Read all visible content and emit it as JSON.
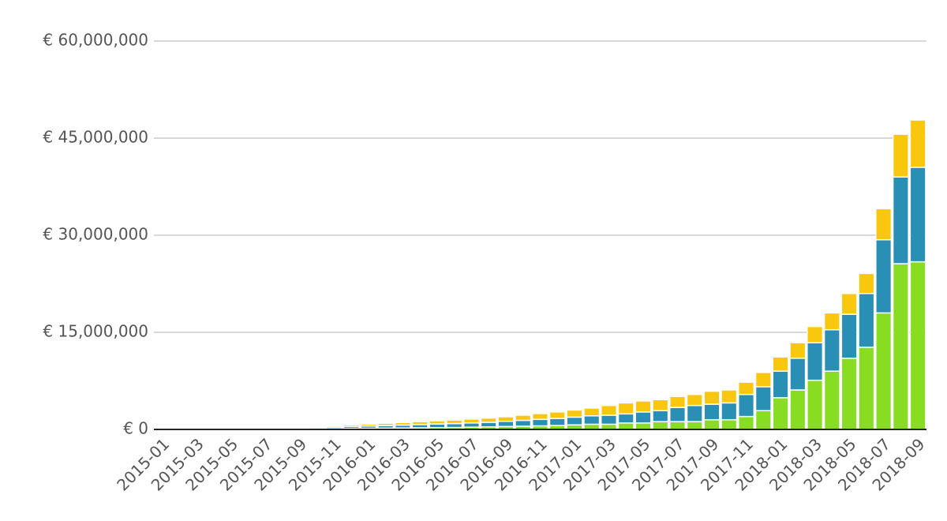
{
  "chart_data": {
    "type": "stacked_bar",
    "categories": [
      "2015-01",
      null,
      "2015-03",
      null,
      "2015-05",
      null,
      "2015-07",
      null,
      "2015-09",
      null,
      "2015-11",
      null,
      "2016-01",
      null,
      "2016-03",
      null,
      "2016-05",
      null,
      "2016-07",
      null,
      "2016-09",
      null,
      "2016-11",
      null,
      "2017-01",
      null,
      "2017-03",
      null,
      "2017-05",
      null,
      "2017-07",
      null,
      "2017-09",
      null,
      "2017-11",
      null,
      "2018-01",
      null,
      "2018-03",
      null,
      "2018-05",
      null,
      "2018-07",
      null,
      "2018-09"
    ],
    "series": [
      {
        "color": "#88dd22",
        "values": [
          0,
          0,
          10000,
          20000,
          30000,
          40000,
          50000,
          60000,
          80000,
          100000,
          120000,
          150000,
          180000,
          200000,
          220000,
          250000,
          280000,
          300000,
          350000,
          400000,
          450000,
          500000,
          550000,
          600000,
          700000,
          800000,
          800000,
          1000000,
          1000000,
          1200000,
          1200000,
          1200000,
          1500000,
          1500000,
          2000000,
          2900000,
          4900000,
          6100000,
          7600000,
          9000000,
          11000000,
          12700000,
          18000000,
          25600000,
          25900000
        ]
      },
      {
        "color": "#2a8fb5",
        "values": [
          0,
          0,
          10000,
          30000,
          50000,
          70000,
          90000,
          120000,
          150000,
          200000,
          250000,
          300000,
          350000,
          400000,
          450000,
          500000,
          550000,
          600000,
          650000,
          700000,
          800000,
          900000,
          1000000,
          1100000,
          1200000,
          1300000,
          1400000,
          1400000,
          1700000,
          1700000,
          2200000,
          2500000,
          2400000,
          2600000,
          3400000,
          3700000,
          4100000,
          4900000,
          5800000,
          6400000,
          6800000,
          8300000,
          11300000,
          13400000,
          14600000
        ]
      },
      {
        "color": "#f9c80e",
        "values": [
          0,
          0,
          20000,
          40000,
          60000,
          80000,
          100000,
          120000,
          150000,
          180000,
          200000,
          250000,
          300000,
          350000,
          400000,
          450000,
          500000,
          550000,
          600000,
          650000,
          700000,
          800000,
          900000,
          1000000,
          1100000,
          1200000,
          1500000,
          1700000,
          1700000,
          1700000,
          1700000,
          1700000,
          2000000,
          2000000,
          1900000,
          2200000,
          2200000,
          2400000,
          2500000,
          2600000,
          3200000,
          3100000,
          4800000,
          6600000,
          7300000
        ]
      }
    ],
    "ylim": [
      0,
      60000000
    ],
    "yticks": [
      {
        "value": 0,
        "label": "€ 0"
      },
      {
        "value": 15000000,
        "label": "€ 15,000,000"
      },
      {
        "value": 30000000,
        "label": "€ 30,000,000"
      },
      {
        "value": 45000000,
        "label": "€ 45,000,000"
      },
      {
        "value": 60000000,
        "label": "€ 60,000,000"
      }
    ],
    "grid": true
  }
}
